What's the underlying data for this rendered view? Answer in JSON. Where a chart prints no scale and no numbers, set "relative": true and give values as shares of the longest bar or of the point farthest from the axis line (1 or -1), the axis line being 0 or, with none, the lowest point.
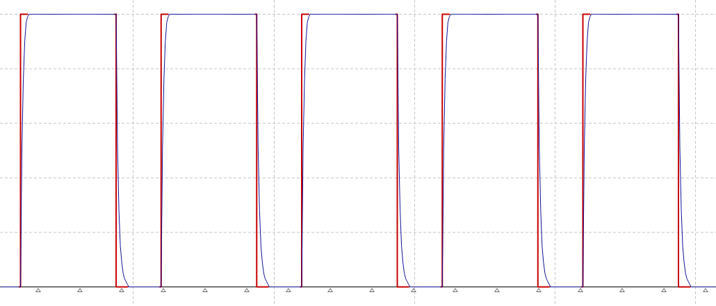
{
  "chart_data": {
    "type": "line",
    "relative": true,
    "grid": true,
    "tick_labels": false,
    "marker": "none",
    "line_style": "solid",
    "categories": [
      null,
      null,
      null,
      null,
      null,
      null,
      null,
      null,
      null,
      null,
      null,
      null,
      null,
      null,
      null,
      null,
      null,
      null,
      null,
      null,
      null,
      null,
      null,
      null,
      null,
      null,
      null,
      null,
      null,
      null,
      null,
      null,
      null,
      null,
      null,
      null,
      null,
      null,
      null,
      null,
      null,
      null,
      null,
      null,
      null,
      null,
      null,
      null,
      null,
      null,
      null,
      null,
      null,
      null,
      null,
      null,
      null,
      null,
      null,
      null,
      null,
      null,
      null,
      null,
      null,
      null,
      null,
      null,
      null,
      null,
      null,
      null,
      null,
      null,
      null,
      null,
      null,
      null,
      null,
      null,
      null,
      null,
      null,
      null,
      null,
      null,
      null,
      null,
      null,
      null,
      null,
      null,
      null,
      null,
      null,
      null,
      null,
      null,
      null,
      null,
      null,
      null,
      null,
      null,
      null,
      null,
      null,
      null,
      null,
      null,
      null,
      null,
      null,
      null,
      null,
      null,
      null,
      null,
      null,
      null,
      null,
      null,
      null,
      null,
      null,
      null,
      null,
      null,
      null,
      null,
      null,
      null,
      null,
      null,
      null,
      null,
      null,
      null,
      null,
      null,
      null,
      null,
      null,
      null,
      null,
      null,
      null,
      null,
      null,
      null,
      null,
      null,
      null,
      null,
      null,
      null,
      null,
      null,
      null,
      null,
      null,
      null,
      null,
      null,
      null,
      null,
      null,
      null,
      null,
      null,
      null,
      null,
      null,
      null,
      null,
      null,
      null,
      null,
      null,
      null,
      null,
      null,
      null,
      null,
      null,
      null,
      null,
      null,
      null,
      null,
      null,
      null,
      null,
      null,
      null,
      null,
      null,
      null,
      null,
      null,
      null,
      null,
      null,
      null,
      null,
      null,
      null,
      null,
      null,
      null,
      null,
      null,
      null,
      null,
      null,
      null,
      null,
      null,
      null,
      null,
      null,
      null,
      null,
      null,
      null,
      null,
      null,
      null,
      null,
      null,
      null,
      null,
      null,
      null,
      null,
      null,
      null,
      null,
      null,
      null,
      null,
      null,
      null,
      null,
      null,
      null,
      null,
      null,
      null,
      null,
      null,
      null,
      null,
      null,
      null,
      null,
      null,
      null,
      null,
      null,
      null,
      null,
      null,
      null,
      null,
      null,
      null,
      null,
      null,
      null,
      null,
      null,
      null,
      null,
      null,
      null,
      null,
      null,
      null,
      null,
      null,
      null,
      null,
      null,
      null,
      null,
      null,
      null,
      null,
      null,
      null,
      null,
      null,
      null,
      null,
      null,
      null,
      null,
      null,
      null,
      null,
      null,
      null,
      null,
      null,
      null,
      null,
      null,
      null,
      null,
      null,
      null,
      null,
      null,
      null,
      null,
      null,
      null,
      null,
      null,
      null,
      null,
      null,
      null,
      null,
      null,
      null,
      null,
      null,
      null,
      null,
      null,
      null,
      null,
      null,
      null,
      null,
      null,
      null,
      null,
      null,
      null,
      null,
      null,
      null,
      null,
      null,
      null,
      null,
      null,
      null,
      null,
      null,
      null,
      null,
      null,
      null,
      null,
      null,
      null,
      null,
      null,
      null,
      null,
      null,
      null,
      null,
      null,
      null,
      null,
      null,
      null,
      null,
      null,
      null,
      null,
      null,
      null,
      null,
      null,
      null,
      null,
      null,
      null,
      null,
      null,
      null,
      null,
      null,
      null,
      null,
      null,
      null,
      null,
      null,
      null,
      null,
      null,
      null,
      null,
      null,
      null,
      null,
      null,
      null,
      null,
      null,
      null,
      null,
      null,
      null,
      null,
      null,
      null,
      null,
      null,
      null,
      null,
      null,
      null,
      null,
      null,
      null,
      null,
      null,
      null,
      null,
      null,
      null,
      null,
      null,
      null,
      null,
      null,
      null,
      null,
      null,
      null,
      null,
      null,
      null,
      null,
      null,
      null,
      null,
      null,
      null,
      null,
      null,
      null,
      null,
      null,
      null,
      null,
      null,
      null,
      null,
      null,
      null,
      null,
      null,
      null,
      null,
      null,
      null,
      null,
      null,
      null,
      null,
      null,
      null,
      null,
      null,
      null,
      null,
      null,
      null,
      null,
      null,
      null,
      null,
      null,
      null,
      null,
      null,
      null,
      null,
      null,
      null,
      null,
      null,
      null,
      null,
      null,
      null,
      null,
      null,
      null,
      null,
      null,
      null,
      null,
      null,
      null,
      null,
      null,
      null,
      null,
      null
    ],
    "series": [
      {
        "type": "step",
        "color": "#c80000",
        "values": [
          null,
          null,
          null,
          null,
          null,
          null,
          null,
          null,
          null,
          null,
          null,
          null,
          null,
          0,
          1,
          1,
          1,
          1,
          1,
          1,
          null,
          null,
          null,
          null,
          null,
          null,
          null,
          null,
          null,
          null,
          null,
          null,
          null,
          null,
          null,
          null,
          null,
          null,
          null,
          null,
          null,
          null,
          null,
          null,
          null,
          null,
          null,
          null,
          null,
          null,
          null,
          null,
          null,
          null,
          null,
          null,
          null,
          null,
          null,
          null,
          null,
          null,
          null,
          null,
          null,
          null,
          null,
          null,
          null,
          null,
          null,
          null,
          null,
          null,
          null,
          null,
          null,
          null,
          null,
          null,
          null,
          1,
          0,
          0,
          0,
          0,
          0,
          0,
          0,
          0,
          0,
          null,
          null,
          null,
          null,
          null,
          null,
          null,
          null,
          null,
          null,
          null,
          null,
          null,
          null,
          null,
          null,
          null,
          null,
          null,
          null,
          null,
          null,
          0,
          1,
          1,
          1,
          1,
          1,
          1,
          null,
          null,
          null,
          null,
          null,
          null,
          null,
          null,
          null,
          null,
          null,
          null,
          null,
          null,
          null,
          null,
          null,
          null,
          null,
          null,
          null,
          null,
          null,
          null,
          null,
          null,
          null,
          null,
          null,
          null,
          null,
          null,
          null,
          null,
          null,
          null,
          null,
          null,
          null,
          null,
          null,
          null,
          null,
          null,
          null,
          null,
          null,
          null,
          null,
          null,
          null,
          null,
          null,
          null,
          null,
          null,
          null,
          null,
          null,
          null,
          null,
          1,
          0,
          0,
          0,
          0,
          0,
          0,
          0,
          0,
          0,
          null,
          null,
          null,
          null,
          null,
          null,
          null,
          null,
          null,
          null,
          null,
          null,
          null,
          null,
          null,
          null,
          null,
          null,
          null,
          null,
          null,
          null,
          0,
          1,
          1,
          1,
          1,
          1,
          1,
          null,
          null,
          null,
          null,
          null,
          null,
          null,
          null,
          null,
          null,
          null,
          null,
          null,
          null,
          null,
          null,
          null,
          null,
          null,
          null,
          null,
          null,
          null,
          null,
          null,
          null,
          null,
          null,
          null,
          null,
          null,
          null,
          null,
          null,
          null,
          null,
          null,
          null,
          null,
          null,
          null,
          null,
          null,
          null,
          null,
          null,
          null,
          null,
          null,
          null,
          null,
          null,
          null,
          null,
          null,
          null,
          null,
          null,
          null,
          null,
          null,
          1,
          0,
          0,
          0,
          0,
          0,
          0,
          0,
          0,
          0,
          null,
          null,
          null,
          null,
          null,
          null,
          null,
          null,
          null,
          null,
          null,
          null,
          null,
          null,
          null,
          null,
          null,
          null,
          null,
          null,
          null,
          null,
          0,
          1,
          1,
          1,
          1,
          1,
          1,
          null,
          null,
          null,
          null,
          null,
          null,
          null,
          null,
          null,
          null,
          null,
          null,
          null,
          null,
          null,
          null,
          null,
          null,
          null,
          null,
          null,
          null,
          null,
          null,
          null,
          null,
          null,
          null,
          null,
          null,
          null,
          null,
          null,
          null,
          null,
          null,
          null,
          null,
          null,
          null,
          null,
          null,
          null,
          null,
          null,
          null,
          null,
          null,
          null,
          null,
          null,
          null,
          null,
          null,
          null,
          null,
          null,
          null,
          null,
          null,
          null,
          1,
          0,
          0,
          0,
          0,
          0,
          0,
          0,
          0,
          0,
          null,
          null,
          null,
          null,
          null,
          null,
          null,
          null,
          null,
          null,
          null,
          null,
          null,
          null,
          null,
          null,
          null,
          null,
          null,
          null,
          null,
          null,
          0,
          1,
          1,
          1,
          1,
          1,
          1,
          null,
          null,
          null,
          null,
          null,
          null,
          null,
          null,
          null,
          null,
          null,
          null,
          null,
          null,
          null,
          null,
          null,
          null,
          null,
          null,
          null,
          null,
          null,
          null,
          null,
          null,
          null,
          null,
          null,
          null,
          null,
          null,
          null,
          null,
          null,
          null,
          null,
          null,
          null,
          null,
          null,
          null,
          null,
          null,
          null,
          null,
          null,
          null,
          null,
          null,
          null,
          null,
          null,
          null,
          null,
          null,
          null,
          null,
          null,
          null,
          null,
          1,
          0,
          0,
          0,
          0,
          0,
          0,
          0,
          0,
          0,
          null,
          null,
          null,
          null,
          null,
          null,
          null,
          null,
          null,
          null,
          null,
          null,
          null,
          null,
          null,
          null,
          null,
          null
        ]
      },
      {
        "color": "#10109a",
        "values": [
          0,
          0,
          0,
          0,
          0,
          0,
          0,
          0,
          0,
          0,
          0,
          0,
          0,
          0,
          0,
          0.51,
          0.76,
          0.9,
          0.97,
          0.99,
          1,
          1,
          1,
          1,
          1,
          1,
          1,
          1,
          1,
          1,
          1,
          1,
          1,
          1,
          1,
          1,
          1,
          1,
          1,
          1,
          1,
          1,
          1,
          1,
          1,
          1,
          1,
          1,
          1,
          1,
          1,
          1,
          1,
          1,
          1,
          1,
          1,
          1,
          1,
          1,
          1,
          1,
          1,
          1,
          1,
          1,
          1,
          1,
          1,
          1,
          1,
          1,
          1,
          1,
          1,
          1,
          1,
          1,
          1,
          1,
          1,
          1,
          1,
          0.51,
          0.28,
          0.15,
          0.09,
          0.05,
          0.03,
          0.02,
          0.01,
          0,
          0,
          0,
          0,
          0,
          0,
          0,
          0,
          0,
          0,
          0,
          0,
          0,
          0,
          0,
          0,
          0,
          0,
          0,
          0,
          0,
          0,
          0,
          0,
          0.51,
          0.76,
          0.9,
          0.97,
          0.99,
          1,
          1,
          1,
          1,
          1,
          1,
          1,
          1,
          1,
          1,
          1,
          1,
          1,
          1,
          1,
          1,
          1,
          1,
          1,
          1,
          1,
          1,
          1,
          1,
          1,
          1,
          1,
          1,
          1,
          1,
          1,
          1,
          1,
          1,
          1,
          1,
          1,
          1,
          1,
          1,
          1,
          1,
          1,
          1,
          1,
          1,
          1,
          1,
          1,
          1,
          1,
          1,
          1,
          1,
          1,
          1,
          1,
          1,
          1,
          1,
          1,
          1,
          1,
          0.51,
          0.28,
          0.15,
          0.09,
          0.05,
          0.03,
          0.02,
          0.01,
          0,
          0,
          0,
          0,
          0,
          0,
          0,
          0,
          0,
          0,
          0,
          0,
          0,
          0,
          0,
          0,
          0,
          0,
          0,
          0,
          0,
          0,
          0,
          0,
          0.51,
          0.76,
          0.9,
          0.97,
          0.99,
          1,
          1,
          1,
          1,
          1,
          1,
          1,
          1,
          1,
          1,
          1,
          1,
          1,
          1,
          1,
          1,
          1,
          1,
          1,
          1,
          1,
          1,
          1,
          1,
          1,
          1,
          1,
          1,
          1,
          1,
          1,
          1,
          1,
          1,
          1,
          1,
          1,
          1,
          1,
          1,
          1,
          1,
          1,
          1,
          1,
          1,
          1,
          1,
          1,
          1,
          1,
          1,
          1,
          1,
          1,
          1,
          1,
          1,
          1,
          1,
          1,
          1,
          1,
          0.51,
          0.28,
          0.15,
          0.09,
          0.05,
          0.03,
          0.02,
          0.01,
          0,
          0,
          0,
          0,
          0,
          0,
          0,
          0,
          0,
          0,
          0,
          0,
          0,
          0,
          0,
          0,
          0,
          0,
          0,
          0,
          0,
          0,
          0,
          0,
          0.51,
          0.76,
          0.9,
          0.97,
          0.99,
          1,
          1,
          1,
          1,
          1,
          1,
          1,
          1,
          1,
          1,
          1,
          1,
          1,
          1,
          1,
          1,
          1,
          1,
          1,
          1,
          1,
          1,
          1,
          1,
          1,
          1,
          1,
          1,
          1,
          1,
          1,
          1,
          1,
          1,
          1,
          1,
          1,
          1,
          1,
          1,
          1,
          1,
          1,
          1,
          1,
          1,
          1,
          1,
          1,
          1,
          1,
          1,
          1,
          1,
          1,
          1,
          1,
          1,
          1,
          1,
          1,
          1,
          1,
          0.51,
          0.28,
          0.15,
          0.09,
          0.05,
          0.03,
          0.02,
          0.01,
          0,
          0,
          0,
          0,
          0,
          0,
          0,
          0,
          0,
          0,
          0,
          0,
          0,
          0,
          0,
          0,
          0,
          0,
          0,
          0,
          0,
          0,
          0,
          0,
          0.51,
          0.76,
          0.9,
          0.97,
          0.99,
          1,
          1,
          1,
          1,
          1,
          1,
          1,
          1,
          1,
          1,
          1,
          1,
          1,
          1,
          1,
          1,
          1,
          1,
          1,
          1,
          1,
          1,
          1,
          1,
          1,
          1,
          1,
          1,
          1,
          1,
          1,
          1,
          1,
          1,
          1,
          1,
          1,
          1,
          1,
          1,
          1,
          1,
          1,
          1,
          1,
          1,
          1,
          1,
          1,
          1,
          1,
          1,
          1,
          1,
          1,
          1,
          1,
          1,
          1,
          1,
          1,
          1,
          1,
          0.51,
          0.28,
          0.15,
          0.09,
          0.05,
          0.03,
          0.02,
          0.01,
          0,
          0,
          0,
          0,
          0,
          0,
          0,
          0,
          0,
          0,
          0,
          0,
          0,
          0,
          0,
          0,
          0,
          0
        ]
      }
    ]
  }
}
